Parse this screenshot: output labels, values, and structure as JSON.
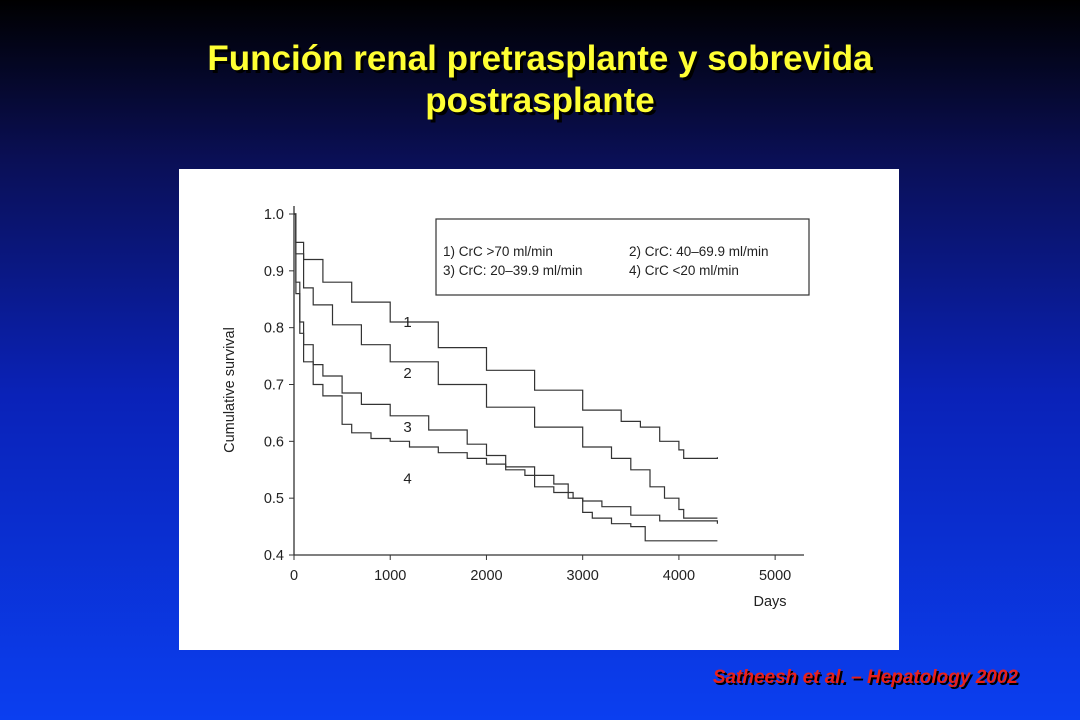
{
  "slide": {
    "title_line1": "Función renal pretrasplante y sobrevida",
    "title_line2": "postrasplante",
    "citation": "Satheesh et al. – Hepatology 2002",
    "colors": {
      "title": "#ffff33",
      "citation": "#e8201c",
      "curve": "#333333"
    }
  },
  "chart_data": {
    "type": "line",
    "title": "",
    "xlabel": "Days",
    "ylabel": "Cumulative survival",
    "xlim": [
      0,
      5000
    ],
    "ylim": [
      0.4,
      1.0
    ],
    "x_ticks": [
      0,
      1000,
      2000,
      3000,
      4000,
      5000
    ],
    "y_ticks": [
      0.4,
      0.5,
      0.6,
      0.7,
      0.8,
      0.9,
      1.0
    ],
    "grid": false,
    "legend_position": "top-right",
    "legend": [
      "1) CrC >70 ml/min",
      "2) CrC: 40–69.9 ml/min",
      "3) CrC: 20–39.9 ml/min",
      "4) CrC <20 ml/min"
    ],
    "series": [
      {
        "name": "1",
        "x": [
          0,
          20,
          100,
          300,
          600,
          1000,
          1500,
          2000,
          2500,
          3000,
          3400,
          3600,
          3800,
          4000,
          4050,
          4400
        ],
        "y": [
          1.0,
          0.95,
          0.92,
          0.88,
          0.845,
          0.81,
          0.765,
          0.725,
          0.69,
          0.655,
          0.635,
          0.625,
          0.6,
          0.585,
          0.57,
          0.572
        ]
      },
      {
        "name": "2",
        "x": [
          0,
          20,
          100,
          200,
          400,
          700,
          1000,
          1500,
          2000,
          2500,
          3000,
          3300,
          3500,
          3700,
          3850,
          4000,
          4050,
          4400
        ],
        "y": [
          1.0,
          0.93,
          0.87,
          0.84,
          0.805,
          0.77,
          0.74,
          0.7,
          0.66,
          0.625,
          0.59,
          0.57,
          0.55,
          0.52,
          0.5,
          0.48,
          0.465,
          0.465
        ]
      },
      {
        "name": "3",
        "x": [
          0,
          20,
          60,
          100,
          200,
          300,
          500,
          700,
          1000,
          1400,
          1800,
          2000,
          2200,
          2500,
          2700,
          2850,
          3000,
          3100,
          3300,
          3500,
          3650,
          4400
        ],
        "y": [
          1.0,
          0.88,
          0.81,
          0.77,
          0.735,
          0.715,
          0.685,
          0.665,
          0.645,
          0.62,
          0.595,
          0.575,
          0.555,
          0.54,
          0.525,
          0.5,
          0.475,
          0.465,
          0.455,
          0.45,
          0.425,
          0.425
        ]
      },
      {
        "name": "4",
        "x": [
          0,
          20,
          60,
          100,
          200,
          300,
          500,
          600,
          800,
          1000,
          1200,
          1500,
          1800,
          2000,
          2200,
          2400,
          2500,
          2700,
          2900,
          3000,
          3200,
          3500,
          3800,
          4400
        ],
        "y": [
          1.0,
          0.86,
          0.79,
          0.74,
          0.7,
          0.68,
          0.63,
          0.615,
          0.605,
          0.6,
          0.59,
          0.58,
          0.57,
          0.56,
          0.55,
          0.54,
          0.52,
          0.51,
          0.5,
          0.495,
          0.485,
          0.47,
          0.46,
          0.455
        ]
      }
    ],
    "curve_labels": [
      "1",
      "2",
      "3",
      "4"
    ]
  }
}
